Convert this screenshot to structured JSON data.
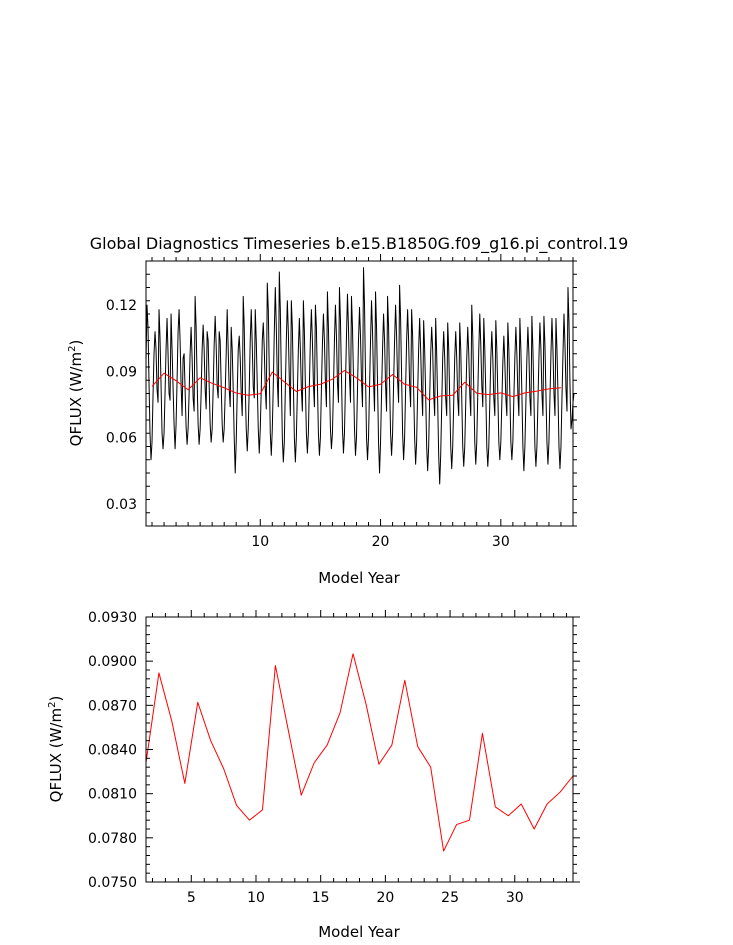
{
  "title": "Global Diagnostics Timeseries b.e15.B1850G.f09_g16.pi_control.19",
  "chart_data": [
    {
      "type": "line",
      "title": "Global Diagnostics Timeseries b.e15.B1850G.f09_g16.pi_control.19",
      "xlabel": "Model Year",
      "ylabel": "QFLUX (W/m²)",
      "ylabel_parts": {
        "main": "QFLUX  (W/m",
        "sup": "2",
        "close": ")"
      },
      "xlim": [
        0.5,
        36
      ],
      "ylim": [
        0.02,
        0.14
      ],
      "xticks": [
        10,
        20,
        30
      ],
      "xtick_labels": [
        "10",
        "20",
        "30"
      ],
      "yticks": [
        0.03,
        0.06,
        0.09,
        0.12
      ],
      "ytick_labels": [
        "0.03",
        "0.06",
        "0.09",
        "0.12"
      ],
      "grid": false,
      "series": [
        {
          "role": "monthly",
          "color": "#000000",
          "x_start": 0.5,
          "x_step": 0.0833333,
          "values": [
            0.094,
            0.12,
            0.11,
            0.085,
            0.062,
            0.05,
            0.058,
            0.079,
            0.098,
            0.108,
            0.1,
            0.082,
            0.076,
            0.118,
            0.105,
            0.084,
            0.062,
            0.055,
            0.062,
            0.08,
            0.1,
            0.114,
            0.098,
            0.08,
            0.077,
            0.116,
            0.1,
            0.083,
            0.066,
            0.055,
            0.066,
            0.086,
            0.108,
            0.118,
            0.104,
            0.084,
            0.07,
            0.096,
            0.098,
            0.082,
            0.065,
            0.057,
            0.064,
            0.08,
            0.098,
            0.11,
            0.096,
            0.078,
            0.072,
            0.124,
            0.11,
            0.086,
            0.066,
            0.057,
            0.064,
            0.08,
            0.1,
            0.111,
            0.1,
            0.082,
            0.073,
            0.108,
            0.104,
            0.084,
            0.066,
            0.058,
            0.064,
            0.082,
            0.102,
            0.115,
            0.102,
            0.083,
            0.078,
            0.108,
            0.104,
            0.084,
            0.066,
            0.058,
            0.064,
            0.08,
            0.098,
            0.118,
            0.1,
            0.082,
            0.074,
            0.11,
            0.1,
            0.082,
            0.06,
            0.044,
            0.058,
            0.08,
            0.1,
            0.106,
            0.096,
            0.08,
            0.07,
            0.124,
            0.11,
            0.083,
            0.064,
            0.054,
            0.064,
            0.082,
            0.104,
            0.118,
            0.102,
            0.083,
            0.078,
            0.118,
            0.104,
            0.084,
            0.064,
            0.053,
            0.064,
            0.082,
            0.104,
            0.112,
            0.1,
            0.082,
            0.073,
            0.13,
            0.118,
            0.09,
            0.062,
            0.052,
            0.064,
            0.084,
            0.108,
            0.128,
            0.11,
            0.086,
            0.074,
            0.135,
            0.118,
            0.088,
            0.06,
            0.049,
            0.058,
            0.082,
            0.104,
            0.122,
            0.108,
            0.086,
            0.07,
            0.122,
            0.11,
            0.085,
            0.06,
            0.049,
            0.06,
            0.08,
            0.1,
            0.114,
            0.1,
            0.082,
            0.072,
            0.122,
            0.108,
            0.084,
            0.062,
            0.053,
            0.062,
            0.084,
            0.104,
            0.118,
            0.104,
            0.085,
            0.074,
            0.12,
            0.11,
            0.085,
            0.062,
            0.052,
            0.06,
            0.082,
            0.102,
            0.116,
            0.104,
            0.085,
            0.074,
            0.126,
            0.11,
            0.086,
            0.064,
            0.055,
            0.062,
            0.082,
            0.104,
            0.12,
            0.106,
            0.085,
            0.076,
            0.128,
            0.113,
            0.088,
            0.064,
            0.053,
            0.062,
            0.084,
            0.106,
            0.125,
            0.11,
            0.088,
            0.076,
            0.124,
            0.11,
            0.087,
            0.064,
            0.052,
            0.06,
            0.082,
            0.104,
            0.119,
            0.106,
            0.086,
            0.074,
            0.137,
            0.12,
            0.088,
            0.06,
            0.05,
            0.06,
            0.082,
            0.104,
            0.122,
            0.108,
            0.086,
            0.072,
            0.126,
            0.11,
            0.084,
            0.058,
            0.044,
            0.058,
            0.08,
            0.1,
            0.116,
            0.104,
            0.084,
            0.072,
            0.124,
            0.11,
            0.085,
            0.062,
            0.052,
            0.062,
            0.084,
            0.104,
            0.12,
            0.106,
            0.086,
            0.076,
            0.129,
            0.114,
            0.088,
            0.062,
            0.05,
            0.06,
            0.082,
            0.104,
            0.118,
            0.104,
            0.084,
            0.074,
            0.118,
            0.106,
            0.082,
            0.06,
            0.048,
            0.058,
            0.08,
            0.1,
            0.114,
            0.1,
            0.082,
            0.07,
            0.113,
            0.1,
            0.08,
            0.056,
            0.045,
            0.056,
            0.078,
            0.098,
            0.11,
            0.1,
            0.08,
            0.07,
            0.114,
            0.098,
            0.076,
            0.052,
            0.039,
            0.052,
            0.074,
            0.096,
            0.108,
            0.096,
            0.078,
            0.07,
            0.112,
            0.1,
            0.078,
            0.056,
            0.046,
            0.056,
            0.076,
            0.096,
            0.108,
            0.096,
            0.078,
            0.07,
            0.112,
            0.1,
            0.078,
            0.056,
            0.047,
            0.056,
            0.076,
            0.096,
            0.11,
            0.098,
            0.08,
            0.07,
            0.12,
            0.106,
            0.082,
            0.058,
            0.048,
            0.058,
            0.08,
            0.1,
            0.116,
            0.102,
            0.084,
            0.074,
            0.114,
            0.1,
            0.08,
            0.056,
            0.047,
            0.056,
            0.076,
            0.096,
            0.108,
            0.096,
            0.078,
            0.07,
            0.113,
            0.1,
            0.08,
            0.058,
            0.05,
            0.058,
            0.076,
            0.094,
            0.106,
            0.094,
            0.078,
            0.07,
            0.112,
            0.1,
            0.08,
            0.058,
            0.05,
            0.058,
            0.078,
            0.096,
            0.11,
            0.098,
            0.08,
            0.07,
            0.114,
            0.1,
            0.08,
            0.056,
            0.045,
            0.056,
            0.076,
            0.096,
            0.11,
            0.098,
            0.078,
            0.07,
            0.115,
            0.1,
            0.078,
            0.056,
            0.047,
            0.056,
            0.076,
            0.096,
            0.112,
            0.1,
            0.08,
            0.07,
            0.115,
            0.102,
            0.08,
            0.058,
            0.048,
            0.058,
            0.078,
            0.098,
            0.114,
            0.1,
            0.08,
            0.07,
            0.114,
            0.1,
            0.08,
            0.056,
            0.046,
            0.056,
            0.078,
            0.098,
            0.116,
            0.102,
            0.082,
            0.072,
            0.128,
            0.112,
            0.084,
            0.064,
            0.068,
            0.076,
            0.08
          ]
        },
        {
          "role": "annual",
          "color": "#ff0000",
          "x": [
            1,
            2,
            3,
            4,
            5,
            6,
            7,
            8,
            9,
            10,
            11,
            12,
            13,
            14,
            15,
            16,
            17,
            18,
            19,
            20,
            21,
            22,
            23,
            24,
            25,
            26,
            27,
            28,
            29,
            30,
            31,
            32,
            33,
            34,
            35
          ],
          "values": [
            0.0832,
            0.0892,
            0.0858,
            0.0817,
            0.0871,
            0.0846,
            0.0826,
            0.0802,
            0.0792,
            0.0799,
            0.0897,
            0.0853,
            0.0809,
            0.0831,
            0.0842,
            0.0865,
            0.0904,
            0.0871,
            0.083,
            0.0842,
            0.0886,
            0.0842,
            0.0828,
            0.0771,
            0.0789,
            0.0792,
            0.0851,
            0.0801,
            0.0795,
            0.0803,
            0.0786,
            0.0803,
            0.0811,
            0.0821,
            0.0826
          ]
        }
      ]
    },
    {
      "type": "line",
      "xlabel": "Model Year",
      "ylabel": "QFLUX (W/m²)",
      "ylabel_parts": {
        "main": "QFLUX  (W/m",
        "sup": "2",
        "close": ")"
      },
      "xlim": [
        1.5,
        34.5
      ],
      "ylim": [
        0.075,
        0.093
      ],
      "xticks": [
        5,
        10,
        15,
        20,
        25,
        30
      ],
      "xtick_labels": [
        "5",
        "10",
        "15",
        "20",
        "25",
        "30"
      ],
      "yticks": [
        0.075,
        0.078,
        0.081,
        0.084,
        0.087,
        0.09,
        0.093
      ],
      "ytick_labels": [
        "0.0750",
        "0.0780",
        "0.0810",
        "0.0840",
        "0.0870",
        "0.0900",
        "0.0930"
      ],
      "grid": false,
      "series": [
        {
          "color": "#ff0000",
          "x": [
            1.5,
            2.5,
            3.5,
            4.5,
            5.5,
            6.5,
            7.5,
            8.5,
            9.5,
            10.5,
            11.5,
            12.5,
            13.5,
            14.5,
            15.5,
            16.5,
            17.5,
            18.5,
            19.5,
            20.5,
            21.5,
            22.5,
            23.5,
            24.5,
            25.5,
            26.5,
            27.5,
            28.5,
            29.5,
            30.5,
            31.5,
            32.5,
            33.5,
            34.5
          ],
          "values": [
            0.0831,
            0.0892,
            0.0859,
            0.0817,
            0.0872,
            0.0846,
            0.0827,
            0.0802,
            0.0792,
            0.0799,
            0.0897,
            0.0853,
            0.0809,
            0.0831,
            0.0843,
            0.0865,
            0.0905,
            0.0871,
            0.083,
            0.0843,
            0.0887,
            0.0842,
            0.0828,
            0.0771,
            0.0789,
            0.0792,
            0.0851,
            0.0801,
            0.0795,
            0.0803,
            0.0786,
            0.0803,
            0.0811,
            0.0822
          ]
        }
      ]
    }
  ]
}
